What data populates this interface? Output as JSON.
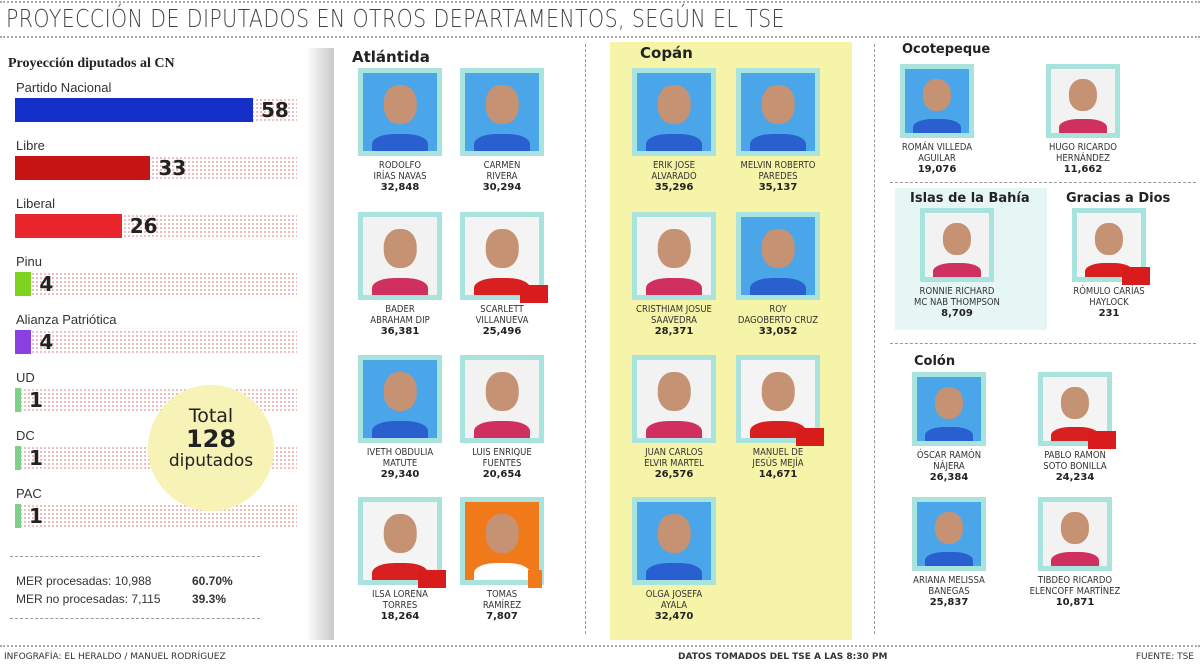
{
  "title": "PROYECCIÓN DE DIPUTADOS EN OTROS DEPARTAMENTOS, SEGÚN EL TSE",
  "chart_data": {
    "type": "bar",
    "orientation": "horizontal",
    "title": "Proyección diputados al CN",
    "categories": [
      "Partido Nacional",
      "Libre",
      "Liberal",
      "Pinu",
      "Alianza Patriótica",
      "UD",
      "DC",
      "PAC"
    ],
    "values": [
      58,
      33,
      26,
      4,
      4,
      1,
      1,
      1
    ],
    "colors": [
      "#1530c8",
      "#c41414",
      "#e8262b",
      "#7ed321",
      "#8a3fe0",
      "#7fd08a",
      "#7fd08a",
      "#7fd08a"
    ]
  },
  "total": {
    "label_top": "Total",
    "value": "128",
    "label_bottom": "diputados"
  },
  "mer": [
    {
      "label": "MER procesadas: 10,988",
      "pct": "60.70%"
    },
    {
      "label": "MER no procesadas: 7,115",
      "pct": "39.3%"
    }
  ],
  "departments": {
    "atlantida": "Atlántida",
    "copan": "Copán",
    "ocotepeque": "Ocotepeque",
    "islas": "Islas de la Bahía",
    "gracias": "Gracias a Dios",
    "colon": "Colón"
  },
  "party_colors": {
    "nacional": "#1a3fc4",
    "liberal": "#e02020",
    "libre": "#d81b1b",
    "pinu": "#f07a1a"
  },
  "candidates": [
    {
      "dept": "atlantida",
      "name1": "Rodolfo",
      "name2": "Irías Navas",
      "votes": "32,848",
      "party": "nacional"
    },
    {
      "dept": "atlantida",
      "name1": "Carmen",
      "name2": "Rivera",
      "votes": "30,294",
      "party": "nacional"
    },
    {
      "dept": "atlantida",
      "name1": "Bader",
      "name2": "Abraham Dip",
      "votes": "36,381",
      "party": "liberal"
    },
    {
      "dept": "atlantida",
      "name1": "Scarlett",
      "name2": "Villanueva",
      "votes": "25,496",
      "party": "libre"
    },
    {
      "dept": "atlantida",
      "name1": "Iveth Obdulia",
      "name2": "Matute",
      "votes": "29,340",
      "party": "nacional"
    },
    {
      "dept": "atlantida",
      "name1": "Luis Enrique",
      "name2": "Fuentes",
      "votes": "20,654",
      "party": "liberal"
    },
    {
      "dept": "atlantida",
      "name1": "Ilsa Lorena",
      "name2": "Torres",
      "votes": "18,264",
      "party": "libre"
    },
    {
      "dept": "atlantida",
      "name1": "Tomas",
      "name2": "Ramírez",
      "votes": "7,807",
      "party": "pinu"
    },
    {
      "dept": "copan",
      "name1": "Erik Jose",
      "name2": "Alvarado",
      "votes": "35,296",
      "party": "nacional"
    },
    {
      "dept": "copan",
      "name1": "Melvin Roberto",
      "name2": "Paredes",
      "votes": "35,137",
      "party": "nacional"
    },
    {
      "dept": "copan",
      "name1": "Cristhiam Josue",
      "name2": "Saavedra",
      "votes": "28,371",
      "party": "liberal"
    },
    {
      "dept": "copan",
      "name1": "Roy",
      "name2": "Dagoberto Cruz",
      "votes": "33,052",
      "party": "nacional"
    },
    {
      "dept": "copan",
      "name1": "Juan Carlos",
      "name2": "Elvir Martel",
      "votes": "26,576",
      "party": "liberal"
    },
    {
      "dept": "copan",
      "name1": "Manuel de",
      "name2": "Jesús Mejía",
      "votes": "14,671",
      "party": "libre"
    },
    {
      "dept": "copan",
      "name1": "Olga Josefa",
      "name2": "Ayala",
      "votes": "32,470",
      "party": "nacional"
    },
    {
      "dept": "ocotepeque",
      "name1": "Román Villeda",
      "name2": "Aguilar",
      "votes": "19,076",
      "party": "nacional"
    },
    {
      "dept": "ocotepeque",
      "name1": "Hugo Ricardo",
      "name2": "Hernández",
      "votes": "11,662",
      "party": "liberal"
    },
    {
      "dept": "islas",
      "name1": "Ronnie Richard",
      "name2": "Mc Nab Thompson",
      "votes": "8,709",
      "party": "liberal"
    },
    {
      "dept": "gracias",
      "name1": "Rómulo Carías",
      "name2": "Haylock",
      "votes": "231",
      "party": "libre"
    },
    {
      "dept": "colon",
      "name1": "Óscar Ramón",
      "name2": "Nájera",
      "votes": "26,384",
      "party": "nacional"
    },
    {
      "dept": "colon",
      "name1": "Pablo Ramon",
      "name2": "Soto Bonilla",
      "votes": "24,234",
      "party": "libre"
    },
    {
      "dept": "colon",
      "name1": "Ariana Melissa",
      "name2": "Banegas",
      "votes": "25,837",
      "party": "nacional"
    },
    {
      "dept": "colon",
      "name1": "Tibdeo Ricardo",
      "name2": "Elencoff Martínez",
      "votes": "10,871",
      "party": "liberal"
    }
  ],
  "footer": {
    "credit": "INFOGRAFÍA: EL HERALDO / MANUEL RODRÍGUEZ",
    "note": "DATOS TOMADOS DEL TSE A LAS 8:30 PM",
    "source": "FUENTE: TSE"
  }
}
